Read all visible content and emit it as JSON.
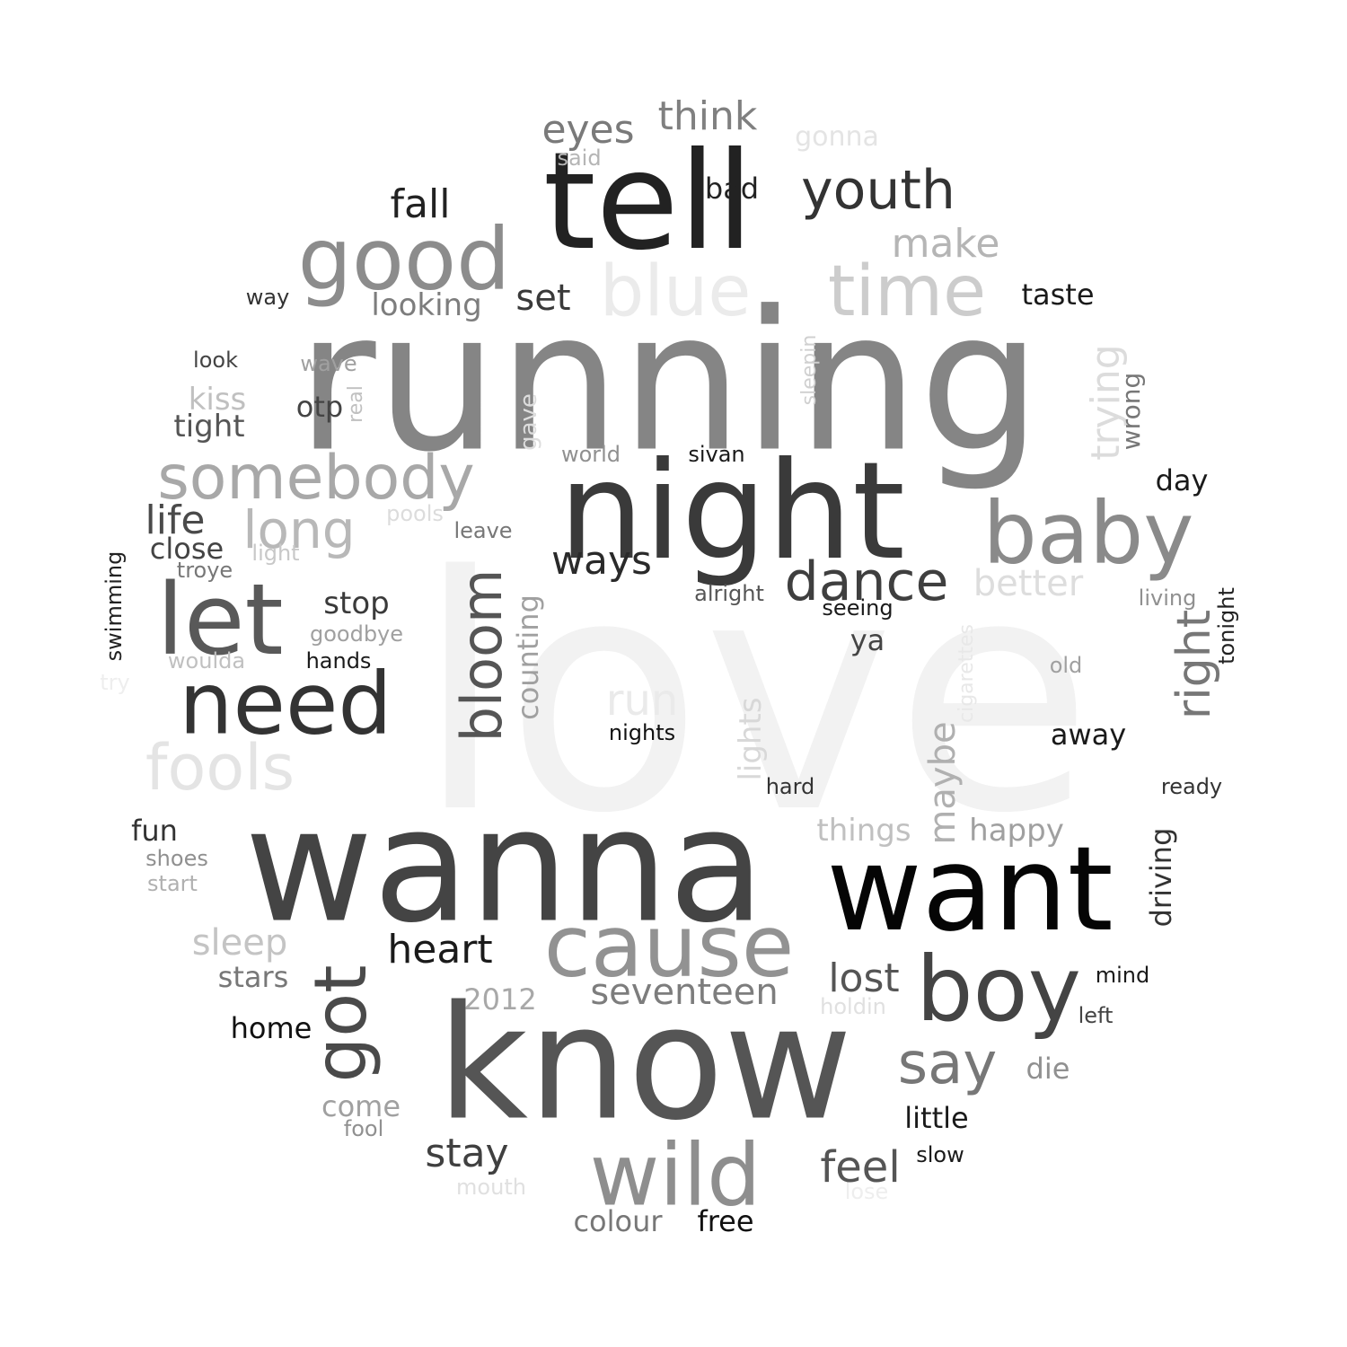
{
  "words": [
    {
      "text": "love",
      "color": "#f2f2f2"
    },
    {
      "text": "running",
      "color": "#858585"
    },
    {
      "text": "wanna",
      "color": "#444444"
    },
    {
      "text": "know",
      "color": "#555555"
    },
    {
      "text": "tell",
      "color": "#222222"
    },
    {
      "text": "night",
      "color": "#3a3a3a"
    },
    {
      "text": "want",
      "color": "#050505"
    },
    {
      "text": "blue",
      "color": "#ebebeb"
    },
    {
      "text": "time",
      "color": "#cccccc"
    },
    {
      "text": "good",
      "color": "#8c8c8c"
    },
    {
      "text": "baby",
      "color": "#8a8a8a"
    },
    {
      "text": "cause",
      "color": "#929292"
    },
    {
      "text": "let",
      "color": "#595959"
    },
    {
      "text": "need",
      "color": "#333333"
    },
    {
      "text": "boy",
      "color": "#444444"
    },
    {
      "text": "wild",
      "color": "#8e8e8e"
    },
    {
      "text": "somebody",
      "color": "#a8a8a8"
    },
    {
      "text": "fools",
      "color": "#e4e4e4"
    },
    {
      "text": "youth",
      "color": "#333333"
    },
    {
      "text": "got",
      "color": "#4a4a4a"
    },
    {
      "text": "bloom",
      "color": "#555555"
    },
    {
      "text": "dance",
      "color": "#3f3f3f"
    },
    {
      "text": "say",
      "color": "#777777"
    },
    {
      "text": "long",
      "color": "#b8b8b8"
    },
    {
      "text": "eyes",
      "color": "#7a7a7a"
    },
    {
      "text": "think",
      "color": "#808080"
    },
    {
      "text": "make",
      "color": "#b5b5b5"
    },
    {
      "text": "feel",
      "color": "#555555"
    },
    {
      "text": "stay",
      "color": "#404040"
    },
    {
      "text": "heart",
      "color": "#1a1a1a"
    },
    {
      "text": "life",
      "color": "#4a4a4a"
    },
    {
      "text": "fall",
      "color": "#222222"
    },
    {
      "text": "right",
      "color": "#777777"
    },
    {
      "text": "trying",
      "color": "#dcdcdc"
    },
    {
      "text": "ways",
      "color": "#2a2a2a"
    },
    {
      "text": "lost",
      "color": "#555555"
    },
    {
      "text": "run",
      "color": "#eaeaea"
    },
    {
      "text": "seventeen",
      "color": "#7d7d7d"
    },
    {
      "text": "better",
      "color": "#dddddd"
    },
    {
      "text": "sleep",
      "color": "#c4c4c4"
    },
    {
      "text": "maybe",
      "color": "#b0b0b0"
    },
    {
      "text": "set",
      "color": "#3a3a3a"
    },
    {
      "text": "colour",
      "color": "#777777"
    },
    {
      "text": "free",
      "color": "#111111"
    },
    {
      "text": "little",
      "color": "#1a1a1a"
    },
    {
      "text": "things",
      "color": "#c0c0c0"
    },
    {
      "text": "happy",
      "color": "#a0a0a0"
    },
    {
      "text": "stop",
      "color": "#3a3a3a"
    },
    {
      "text": "looking",
      "color": "#7d7d7d"
    },
    {
      "text": "taste",
      "color": "#1a1a1a"
    },
    {
      "text": "bad",
      "color": "#222222"
    },
    {
      "text": "tight",
      "color": "#555555"
    },
    {
      "text": "kiss",
      "color": "#c0c0c0"
    },
    {
      "text": "counting",
      "color": "#a0a0a0"
    },
    {
      "text": "driving",
      "color": "#333333"
    },
    {
      "text": "home",
      "color": "#111111"
    },
    {
      "text": "stars",
      "color": "#777777"
    },
    {
      "text": "come",
      "color": "#a0a0a0"
    },
    {
      "text": "away",
      "color": "#1a1a1a"
    },
    {
      "text": "2012",
      "color": "#a8a8a8"
    },
    {
      "text": "lights",
      "color": "#d8d8d8"
    },
    {
      "text": "fun",
      "color": "#333333"
    },
    {
      "text": "close",
      "color": "#444444"
    },
    {
      "text": "otp",
      "color": "#444444"
    },
    {
      "text": "day",
      "color": "#1a1a1a"
    },
    {
      "text": "die",
      "color": "#909090"
    },
    {
      "text": "wrong",
      "color": "#777777"
    },
    {
      "text": "ya",
      "color": "#444444"
    },
    {
      "text": "gonna",
      "color": "#e4e4e4"
    },
    {
      "text": "goodbye",
      "color": "#a0a0a0"
    },
    {
      "text": "hands",
      "color": "#1a1a1a"
    },
    {
      "text": "sivan",
      "color": "#1a1a1a"
    },
    {
      "text": "world",
      "color": "#909090"
    },
    {
      "text": "gave",
      "color": "#dddddd"
    },
    {
      "text": "sleepin",
      "color": "#d0d0d0"
    },
    {
      "text": "wave",
      "color": "#a0a0a0"
    },
    {
      "text": "look",
      "color": "#444444"
    },
    {
      "text": "way",
      "color": "#333333"
    },
    {
      "text": "said",
      "color": "#b5b5b5"
    },
    {
      "text": "real",
      "color": "#c0c0c0"
    },
    {
      "text": "pools",
      "color": "#dcdcdc"
    },
    {
      "text": "leave",
      "color": "#777777"
    },
    {
      "text": "light",
      "color": "#c8c8c8"
    },
    {
      "text": "troye",
      "color": "#777777"
    },
    {
      "text": "swimming",
      "color": "#222222"
    },
    {
      "text": "woulda",
      "color": "#c0c0c0"
    },
    {
      "text": "try",
      "color": "#eeeeee"
    },
    {
      "text": "alright",
      "color": "#555555"
    },
    {
      "text": "seeing",
      "color": "#1a1a1a"
    },
    {
      "text": "nights",
      "color": "#111111"
    },
    {
      "text": "hard",
      "color": "#333333"
    },
    {
      "text": "cigarettes",
      "color": "#e8e8e8"
    },
    {
      "text": "living",
      "color": "#909090"
    },
    {
      "text": "tonight",
      "color": "#222222"
    },
    {
      "text": "old",
      "color": "#a0a0a0"
    },
    {
      "text": "ready",
      "color": "#333333"
    },
    {
      "text": "shoes",
      "color": "#909090"
    },
    {
      "text": "start",
      "color": "#b0b0b0"
    },
    {
      "text": "fool",
      "color": "#909090"
    },
    {
      "text": "mouth",
      "color": "#e0e0e0"
    },
    {
      "text": "lose",
      "color": "#eeeeee"
    },
    {
      "text": "holdin",
      "color": "#e0e0e0"
    },
    {
      "text": "slow",
      "color": "#1a1a1a"
    },
    {
      "text": "mind",
      "color": "#1a1a1a"
    },
    {
      "text": "left",
      "color": "#444444"
    }
  ]
}
